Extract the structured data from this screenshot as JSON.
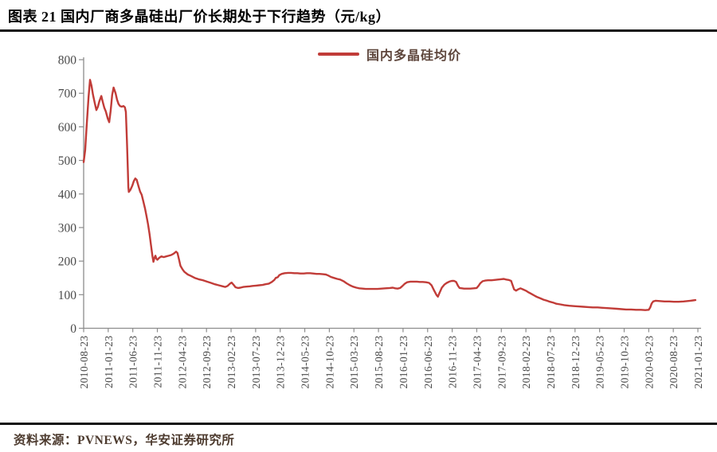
{
  "figure": {
    "title": "图表 21 国内厂商多晶硅出厂价长期处于下行趋势（元/kg）",
    "source": "资料来源：PVNEWS，华安证券研究所"
  },
  "legend": {
    "label": "国内多晶硅均价"
  },
  "colors": {
    "line": "#c13c38",
    "legend_text": "#5e463c",
    "axis": "#8c8c8c",
    "tick_label": "#4a4a4a",
    "rule": "#121212"
  },
  "chart_data": {
    "type": "line",
    "title": "国内厂商多晶硅出厂价长期处于下行趋势",
    "unit": "元/kg",
    "xlabel": "",
    "ylabel": "",
    "ylim": [
      0,
      800
    ],
    "y_ticks": [
      0,
      100,
      200,
      300,
      400,
      500,
      600,
      700,
      800
    ],
    "grid": false,
    "legend_position": "top-center",
    "x_tick_labels": [
      "2010-08-23",
      "2011-01-23",
      "2011-06-23",
      "2011-11-23",
      "2012-04-23",
      "2012-09-23",
      "2013-02-23",
      "2013-07-23",
      "2013-12-23",
      "2014-05-23",
      "2014-10-23",
      "2015-03-23",
      "2015-08-23",
      "2016-01-23",
      "2016-06-23",
      "2016-11-23",
      "2017-04-23",
      "2017-09-23",
      "2018-02-23",
      "2018-07-23",
      "2018-12-23",
      "2019-05-23",
      "2019-10-23",
      "2020-03-23",
      "2020-08-23",
      "2021-01-23"
    ],
    "x_months_per_tick": 5,
    "x_range_months": [
      0,
      125
    ],
    "series": [
      {
        "name": "国内多晶硅均价",
        "x_unit": "months since 2010-08-23",
        "points": [
          [
            0,
            495
          ],
          [
            0.3,
            530
          ],
          [
            0.6,
            600
          ],
          [
            1,
            690
          ],
          [
            1.3,
            740
          ],
          [
            1.6,
            722
          ],
          [
            1.9,
            696
          ],
          [
            2.3,
            668
          ],
          [
            2.6,
            650
          ],
          [
            2.9,
            660
          ],
          [
            3.2,
            676
          ],
          [
            3.6,
            692
          ],
          [
            3.9,
            673
          ],
          [
            4.2,
            657
          ],
          [
            4.5,
            646
          ],
          [
            4.9,
            625
          ],
          [
            5.2,
            614
          ],
          [
            5.5,
            648
          ],
          [
            5.8,
            695
          ],
          [
            6.1,
            717
          ],
          [
            6.5,
            700
          ],
          [
            6.8,
            681
          ],
          [
            7.1,
            668
          ],
          [
            7.4,
            662
          ],
          [
            7.8,
            660
          ],
          [
            8.1,
            662
          ],
          [
            8.4,
            658
          ],
          [
            8.6,
            644
          ],
          [
            8.8,
            560
          ],
          [
            9,
            470
          ],
          [
            9.1,
            420
          ],
          [
            9.2,
            406
          ],
          [
            9.5,
            412
          ],
          [
            9.9,
            425
          ],
          [
            10.2,
            438
          ],
          [
            10.5,
            446
          ],
          [
            10.8,
            442
          ],
          [
            11.2,
            421
          ],
          [
            11.5,
            407
          ],
          [
            11.8,
            398
          ],
          [
            12.1,
            381
          ],
          [
            12.5,
            356
          ],
          [
            12.8,
            333
          ],
          [
            13.1,
            310
          ],
          [
            13.4,
            281
          ],
          [
            13.7,
            248
          ],
          [
            14,
            214
          ],
          [
            14.2,
            198
          ],
          [
            14.4,
            209
          ],
          [
            14.6,
            216
          ],
          [
            14.8,
            207
          ],
          [
            15,
            204
          ],
          [
            15.4,
            210
          ],
          [
            15.8,
            214
          ],
          [
            16.3,
            212
          ],
          [
            16.8,
            214
          ],
          [
            17.3,
            216
          ],
          [
            17.8,
            218
          ],
          [
            18.3,
            222
          ],
          [
            18.8,
            228
          ],
          [
            19.1,
            224
          ],
          [
            19.4,
            205
          ],
          [
            19.7,
            186
          ],
          [
            20.1,
            176
          ],
          [
            20.5,
            168
          ],
          [
            21.2,
            160
          ],
          [
            21.8,
            156
          ],
          [
            22.6,
            150
          ],
          [
            23.4,
            146
          ],
          [
            24.3,
            143
          ],
          [
            25.1,
            139
          ],
          [
            25.9,
            135
          ],
          [
            26.7,
            131
          ],
          [
            27.5,
            128
          ],
          [
            28.3,
            125
          ],
          [
            28.8,
            123
          ],
          [
            29.3,
            126
          ],
          [
            29.8,
            133
          ],
          [
            30.1,
            136
          ],
          [
            30.6,
            128
          ],
          [
            30.9,
            122
          ],
          [
            31.4,
            120
          ],
          [
            31.9,
            121
          ],
          [
            32.5,
            123
          ],
          [
            33.1,
            124
          ],
          [
            33.8,
            125
          ],
          [
            34.4,
            126
          ],
          [
            35.1,
            127
          ],
          [
            35.7,
            128
          ],
          [
            36.4,
            129
          ],
          [
            37,
            131
          ],
          [
            37.7,
            133
          ],
          [
            38.3,
            138
          ],
          [
            38.8,
            144
          ],
          [
            39.1,
            150
          ],
          [
            39.5,
            152
          ],
          [
            39.8,
            158
          ],
          [
            40.3,
            162
          ],
          [
            40.9,
            164
          ],
          [
            41.6,
            165
          ],
          [
            42.2,
            165
          ],
          [
            42.9,
            164
          ],
          [
            43.5,
            164
          ],
          [
            44.1,
            163
          ],
          [
            44.8,
            163
          ],
          [
            45.4,
            164
          ],
          [
            46.1,
            164
          ],
          [
            46.7,
            163
          ],
          [
            47.4,
            162
          ],
          [
            48,
            162
          ],
          [
            48.7,
            161
          ],
          [
            49.3,
            160
          ],
          [
            49.8,
            157
          ],
          [
            50.3,
            153
          ],
          [
            50.9,
            150
          ],
          [
            51.6,
            147
          ],
          [
            52.2,
            145
          ],
          [
            52.9,
            140
          ],
          [
            53.5,
            134
          ],
          [
            54.2,
            128
          ],
          [
            54.8,
            124
          ],
          [
            55.5,
            121
          ],
          [
            56.1,
            119
          ],
          [
            56.8,
            118
          ],
          [
            57.4,
            117
          ],
          [
            58.2,
            117
          ],
          [
            59,
            117
          ],
          [
            59.8,
            117
          ],
          [
            60.6,
            118
          ],
          [
            61.4,
            119
          ],
          [
            62.3,
            120
          ],
          [
            62.9,
            121
          ],
          [
            63.4,
            119
          ],
          [
            63.9,
            118
          ],
          [
            64.4,
            120
          ],
          [
            64.8,
            125
          ],
          [
            65.3,
            132
          ],
          [
            65.8,
            137
          ],
          [
            66.5,
            139
          ],
          [
            67.1,
            139
          ],
          [
            67.8,
            139
          ],
          [
            68.4,
            138
          ],
          [
            69,
            138
          ],
          [
            69.7,
            137
          ],
          [
            70.3,
            135
          ],
          [
            70.8,
            128
          ],
          [
            71.3,
            113
          ],
          [
            71.8,
            99
          ],
          [
            72.1,
            94
          ],
          [
            72.4,
            105
          ],
          [
            72.9,
            121
          ],
          [
            73.4,
            130
          ],
          [
            73.9,
            135
          ],
          [
            74.4,
            139
          ],
          [
            74.9,
            141
          ],
          [
            75.4,
            141
          ],
          [
            75.8,
            138
          ],
          [
            76.2,
            126
          ],
          [
            76.5,
            120
          ],
          [
            77,
            119
          ],
          [
            77.4,
            118
          ],
          [
            78.1,
            118
          ],
          [
            78.7,
            118
          ],
          [
            79.4,
            119
          ],
          [
            80,
            120
          ],
          [
            80.4,
            127
          ],
          [
            80.7,
            134
          ],
          [
            81.2,
            140
          ],
          [
            81.7,
            142
          ],
          [
            82.3,
            143
          ],
          [
            83,
            143
          ],
          [
            83.6,
            144
          ],
          [
            84.3,
            145
          ],
          [
            84.9,
            146
          ],
          [
            85.5,
            147
          ],
          [
            86,
            145
          ],
          [
            86.5,
            144
          ],
          [
            87,
            141
          ],
          [
            87.3,
            128
          ],
          [
            87.6,
            116
          ],
          [
            88,
            112
          ],
          [
            88.4,
            116
          ],
          [
            88.9,
            119
          ],
          [
            89.4,
            116
          ],
          [
            90,
            112
          ],
          [
            90.4,
            108
          ],
          [
            90.9,
            104
          ],
          [
            91.4,
            100
          ],
          [
            91.9,
            96
          ],
          [
            92.3,
            93
          ],
          [
            93,
            89
          ],
          [
            93.6,
            85
          ],
          [
            94.3,
            82
          ],
          [
            94.9,
            79
          ],
          [
            95.6,
            76
          ],
          [
            96.2,
            73
          ],
          [
            97,
            71
          ],
          [
            97.8,
            69
          ],
          [
            98.8,
            67
          ],
          [
            99.8,
            66
          ],
          [
            100.7,
            65
          ],
          [
            101.7,
            64
          ],
          [
            102.7,
            63
          ],
          [
            103.6,
            62
          ],
          [
            104.6,
            62
          ],
          [
            105.6,
            61
          ],
          [
            106.6,
            60
          ],
          [
            107.5,
            59
          ],
          [
            108.5,
            58
          ],
          [
            109.5,
            57
          ],
          [
            110.4,
            56
          ],
          [
            111.4,
            56
          ],
          [
            112.4,
            55
          ],
          [
            113.4,
            55
          ],
          [
            114.3,
            54
          ],
          [
            115,
            55
          ],
          [
            115.3,
            62
          ],
          [
            115.6,
            74
          ],
          [
            115.9,
            80
          ],
          [
            116.4,
            82
          ],
          [
            117.2,
            81
          ],
          [
            118.2,
            80
          ],
          [
            119.2,
            80
          ],
          [
            120.1,
            79
          ],
          [
            121.1,
            79
          ],
          [
            122.1,
            80
          ],
          [
            122.9,
            81
          ],
          [
            123.5,
            82
          ],
          [
            124,
            83
          ],
          [
            124.5,
            84
          ]
        ]
      }
    ]
  }
}
